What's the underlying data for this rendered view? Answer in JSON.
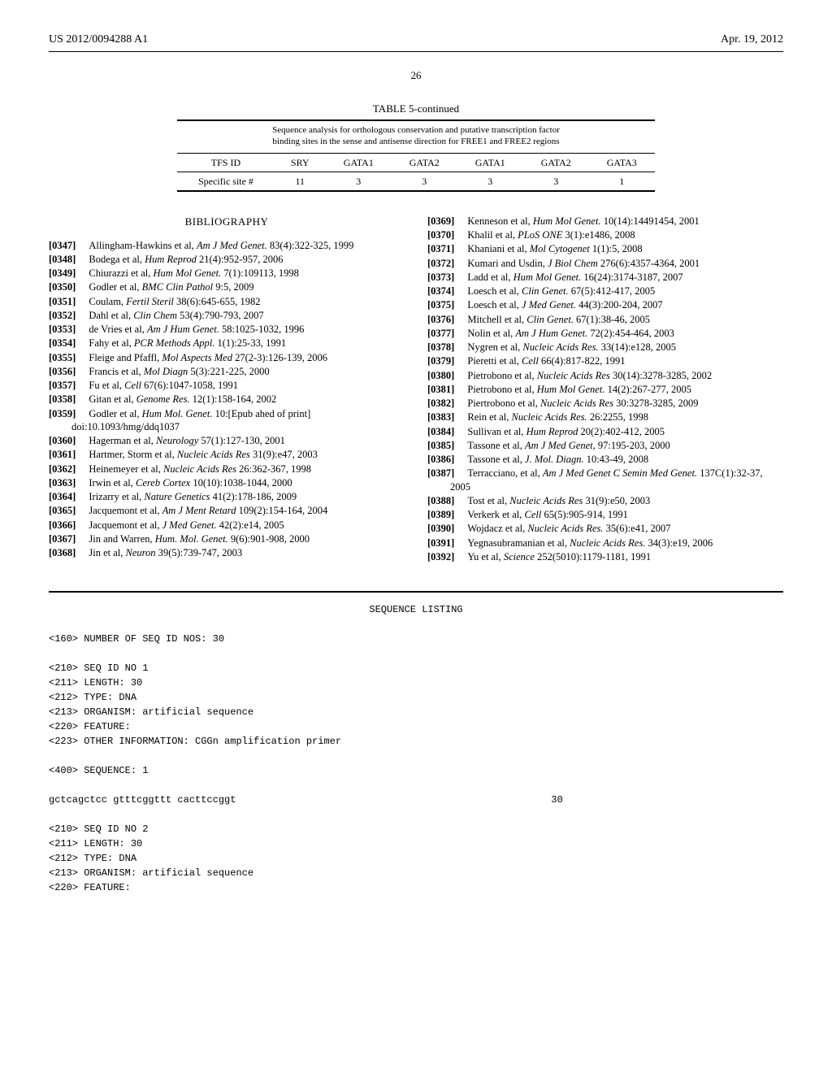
{
  "header": {
    "pub_number": "US 2012/0094288 A1",
    "pub_date": "Apr. 19, 2012"
  },
  "page_number": "26",
  "table": {
    "label": "TABLE 5-continued",
    "caption_line1": "Sequence analysis for orthologous conservation and putative transcription factor",
    "caption_line2": "binding sites in the sense and antisense direction for FREE1 and FREE2 regions",
    "col0": "TFS ID",
    "col1": "SRY",
    "col2": "GATA1",
    "col3": "GATA2",
    "col4": "GATA1",
    "col5": "GATA2",
    "col6": "GATA3",
    "row_label": "Specific site #",
    "v0": "11",
    "v1": "3",
    "v2": "3",
    "v3": "3",
    "v4": "3",
    "v5": "1"
  },
  "bibliography_heading": "BIBLIOGRAPHY",
  "refs": {
    "r0347": "Allingham-Hawkins et al, <em>Am J Med Genet.</em> 83(4):322-325, 1999",
    "r0348": "Bodega et al, <em>Hum Reprod</em> 21(4):952-957, 2006",
    "r0349": "Chiurazzi et al, <em>Hum Mol Genet.</em> 7(1):109113, 1998",
    "r0350": "Godler et al, <em>BMC Clin Pathol</em> 9:5, 2009",
    "r0351": "Coulam, <em>Fertil Steril</em> 38(6):645-655, 1982",
    "r0352": "Dahl et al, <em>Clin Chem</em> 53(4):790-793, 2007",
    "r0353": "de Vries et al, <em>Am J Hum Genet.</em> 58:1025-1032, 1996",
    "r0354": "Fahy et al, <em>PCR Methods Appl.</em> 1(1):25-33, 1991",
    "r0355": "Fleige and Pfaffl, <em>Mol Aspects Med</em> 27(2-3):126-139, 2006",
    "r0356": "Francis et al, <em>Mol Diagn</em> 5(3):221-225, 2000",
    "r0357": "Fu et al, <em>Cell</em> 67(6):1047-1058, 1991",
    "r0358": "Gitan et al, <em>Genome Res.</em> 12(1):158-164, 2002",
    "r0359": "Godler et al, <em>Hum Mol. Genet.</em> 10:[Epub ahed of print] doi:10.1093/hmg/ddq1037",
    "r0360": "Hagerman et al, <em>Neurology</em> 57(1):127-130, 2001",
    "r0361": "Hartmer, Storm et al, <em>Nucleic Acids Res</em> 31(9):e47, 2003",
    "r0362": "Heinemeyer et al, <em>Nucleic Acids Res</em> 26:362-367, 1998",
    "r0363": "Irwin et al, <em>Cereb Cortex</em> 10(10):1038-1044, 2000",
    "r0364": "Irizarry et al, <em>Nature Genetics</em> 41(2):178-186, 2009",
    "r0365": "Jacquemont et al, <em>Am J Ment Retard</em> 109(2):154-164, 2004",
    "r0366": "Jacquemont et al, <em>J Med Genet.</em> 42(2):e14, 2005",
    "r0367": "Jin and Warren, <em>Hum. Mol. Genet.</em> 9(6):901-908, 2000",
    "r0368": "Jin et al, <em>Neuron</em> 39(5):739-747, 2003",
    "r0369": "Kenneson et al, <em>Hum Mol Genet.</em> 10(14):14491454, 2001",
    "r0370": "Khalil et al, <em>PLoS ONE</em> 3(1):e1486, 2008",
    "r0371": "Khaniani et al, <em>Mol Cytogenet</em> 1(1):5, 2008",
    "r0372": "Kumari and Usdin, <em>J Biol Chem</em> 276(6):4357-4364, 2001",
    "r0373": "Ladd et al, <em>Hum Mol Genet.</em> 16(24):3174-3187, 2007",
    "r0374": "Loesch et al, <em>Clin Genet.</em> 67(5):412-417, 2005",
    "r0375": "Loesch et al, <em>J Med Genet.</em> 44(3):200-204, 2007",
    "r0376": "Mitchell et al, <em>Clin Genet.</em> 67(1):38-46, 2005",
    "r0377": "Nolin et al, <em>Am J Hum Genet.</em> 72(2):454-464, 2003",
    "r0378": "Nygren et al, <em>Nucleic Acids Res.</em> 33(14):e128, 2005",
    "r0379": "Pieretti et al, <em>Cell</em> 66(4):817-822, 1991",
    "r0380": "Pietrobono et al, <em>Nucleic Acids Res</em> 30(14):3278-3285, 2002",
    "r0381": "Pietrobono et al, <em>Hum Mol Genet.</em> 14(2):267-277, 2005",
    "r0382": "Piertrobono et al, <em>Nucleic Acids Res</em> 30:3278-3285, 2009",
    "r0383": "Rein et al, <em>Nucleic Acids Res.</em> 26:2255, 1998",
    "r0384": "Sullivan et al, <em>Hum Reprod</em> 20(2):402-412, 2005",
    "r0385": "Tassone et al, <em>Am J Med Genet,</em> 97:195-203, 2000",
    "r0386": "Tassone et al, <em>J. Mol. Diagn.</em> 10:43-49, 2008",
    "r0387": "Terracciano, et al, <em>Am J Med Genet C Semin Med Genet.</em> 137C(1):32-37, 2005",
    "r0388": "Tost et al, <em>Nucleic Acids Res</em> 31(9):e50, 2003",
    "r0389": "Verkerk et al, <em>Cell</em> 65(5):905-914, 1991",
    "r0390": "Wojdacz et al, <em>Nucleic Acids Res.</em> 35(6):e41, 2007",
    "r0391": "Yegnasubramanian et al, <em>Nucleic Acids Res.</em> 34(3):e19, 2006",
    "r0392": "Yu et al, <em>Science</em> 252(5010):1179-1181, 1991"
  },
  "seq": {
    "title": "SEQUENCE LISTING",
    "l1": "<160> NUMBER OF SEQ ID NOS: 30",
    "l2": "<210> SEQ ID NO 1",
    "l3": "<211> LENGTH: 30",
    "l4": "<212> TYPE: DNA",
    "l5": "<213> ORGANISM: artificial sequence",
    "l6": "<220> FEATURE:",
    "l7": "<223> OTHER INFORMATION: CGGn amplification primer",
    "l8": "<400> SEQUENCE: 1",
    "seq1": "gctcagctcc gtttcggttt cacttccggt",
    "seq1_len": "30",
    "l9": "<210> SEQ ID NO 2",
    "l10": "<211> LENGTH: 30",
    "l11": "<212> TYPE: DNA",
    "l12": "<213> ORGANISM: artificial sequence",
    "l13": "<220> FEATURE:"
  }
}
